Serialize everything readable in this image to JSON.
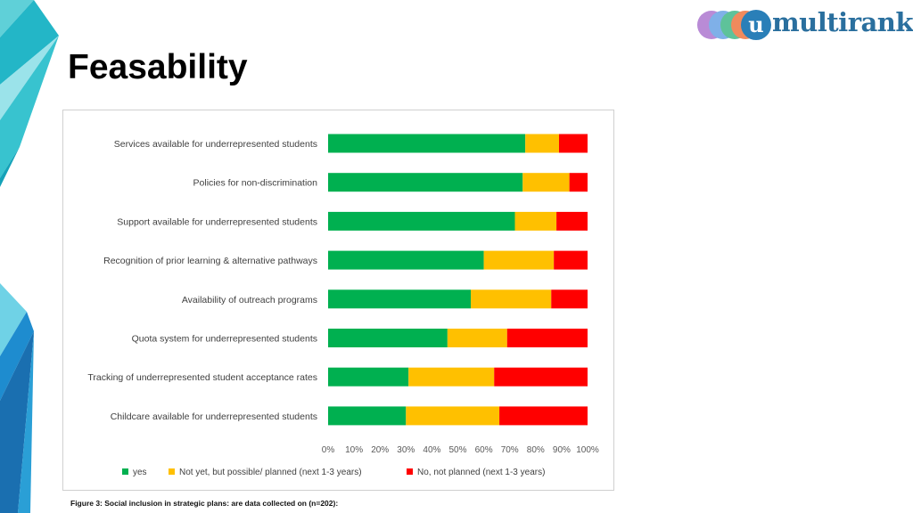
{
  "slide": {
    "title": "Feasability",
    "caption": "Figure 3: Social inclusion in strategic plans: are data collected on (n=202):"
  },
  "logo": {
    "letter": "u",
    "text": "multirank",
    "colors": [
      "#b98bd6",
      "#7fb0e8",
      "#5ec29a",
      "#f08a5d",
      "#2a7fb8"
    ]
  },
  "colors": {
    "yes": "#00b050",
    "possible": "#ffc000",
    "no": "#ff0000"
  },
  "chart_data": {
    "type": "bar",
    "orientation": "horizontal",
    "stacked": true,
    "title": "",
    "xlabel": "",
    "ylabel": "",
    "xlim": [
      0,
      100
    ],
    "x_ticks": [
      "0%",
      "10%",
      "20%",
      "30%",
      "40%",
      "50%",
      "60%",
      "70%",
      "80%",
      "90%",
      "100%"
    ],
    "categories": [
      "Services available for underrepresented students",
      "Policies for non-discrimination",
      "Support available for underrepresented students",
      "Recognition of prior learning & alternative pathways",
      "Availability of outreach programs",
      "Quota system for underrepresented students",
      "Tracking of underrepresented student acceptance rates",
      "Childcare available for underrepresented students"
    ],
    "series": [
      {
        "name": "yes",
        "values": [
          76,
          75,
          72,
          60,
          55,
          46,
          31,
          30
        ]
      },
      {
        "name": "Not yet, but possible/ planned (next 1-3 years)",
        "values": [
          13,
          18,
          16,
          27,
          31,
          23,
          33,
          36
        ]
      },
      {
        "name": "No, not planned (next 1-3 years)",
        "values": [
          11,
          7,
          12,
          13,
          14,
          31,
          36,
          34
        ]
      }
    ],
    "legend_position": "bottom"
  }
}
